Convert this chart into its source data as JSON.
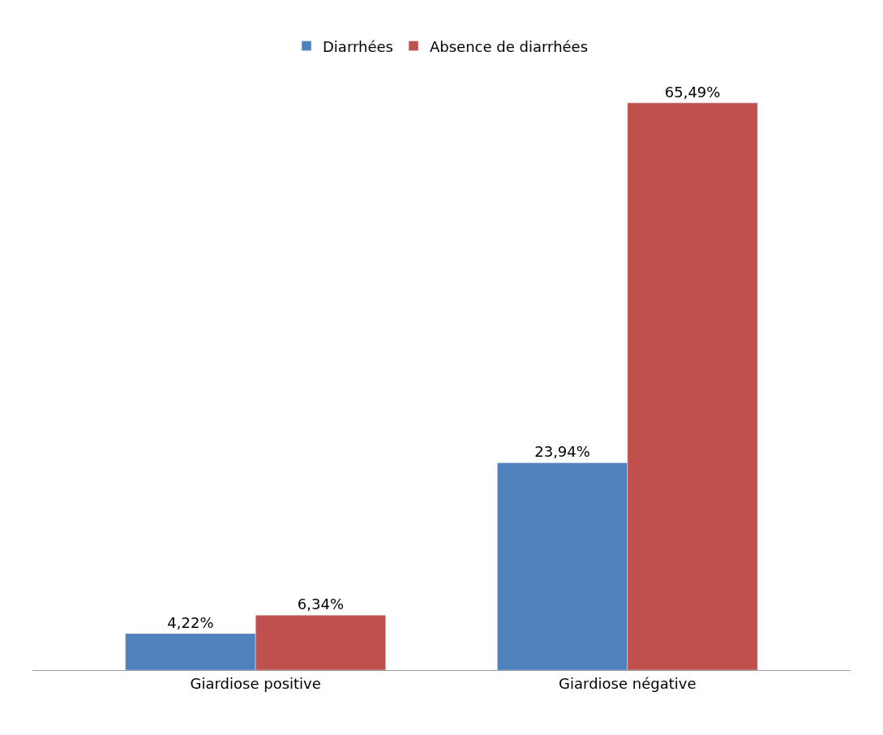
{
  "chart_data": {
    "type": "bar",
    "categories": [
      "Giardiose positive",
      "Giardiose négative"
    ],
    "series": [
      {
        "name": "Diarrhées",
        "color": "#4f81bd",
        "values": [
          4.22,
          23.94
        ],
        "value_labels": [
          "4,22%",
          "23,94%"
        ]
      },
      {
        "name": "Absence de diarrhées",
        "color": "#c0504d",
        "values": [
          6.34,
          65.49
        ],
        "value_labels": [
          "6,34%",
          "65,49%"
        ]
      }
    ],
    "legend": "top"
  }
}
